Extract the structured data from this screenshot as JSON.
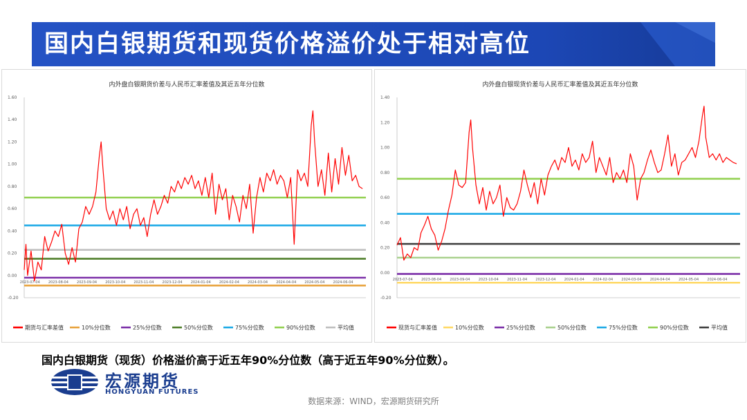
{
  "slide": {
    "title": "国内白银期货和现货价格溢价处于相对高位",
    "caption": "国内白银期货（现货）价格溢价高于近五年90%分位数（高于近五年90%分位数）。",
    "source": "数据来源：WIND，宏源期货研究所",
    "logo": {
      "cn": "宏源期货",
      "en": "HONGYUAN FUTURES"
    },
    "colors": {
      "banner": "#1c47b5",
      "brand": "#1a3d8f",
      "series": "#ff0000"
    }
  },
  "chart_data": [
    {
      "type": "line",
      "title": "内外盘白银期货价差与人民币汇率差值及其近五年分位数",
      "ylim": [
        -0.2,
        1.6
      ],
      "yticks": [
        "-0.20",
        "0.00",
        "0.20",
        "0.40",
        "0.60",
        "0.80",
        "1.00",
        "1.20",
        "1.40",
        "1.60"
      ],
      "xticks": [
        "2023-07-04",
        "2023-08-04",
        "2023-09-04",
        "2023-10-04",
        "2023-11-04",
        "2023-12-04",
        "2024-01-04",
        "2024-02-04",
        "2024-03-04",
        "2024-04-04",
        "2024-05-04",
        "2024-06-04"
      ],
      "series": [
        {
          "name": "期货与汇率差值",
          "color": "#ff0000",
          "points": [
            [
              0,
              0.05
            ],
            [
              0.005,
              0.28
            ],
            [
              0.01,
              0.0
            ],
            [
              0.02,
              0.22
            ],
            [
              0.03,
              -0.05
            ],
            [
              0.04,
              0.12
            ],
            [
              0.05,
              0.05
            ],
            [
              0.06,
              0.35
            ],
            [
              0.07,
              0.22
            ],
            [
              0.08,
              0.3
            ],
            [
              0.09,
              0.4
            ],
            [
              0.1,
              0.35
            ],
            [
              0.11,
              0.46
            ],
            [
              0.12,
              0.2
            ],
            [
              0.13,
              0.1
            ],
            [
              0.14,
              0.25
            ],
            [
              0.15,
              0.12
            ],
            [
              0.16,
              0.42
            ],
            [
              0.17,
              0.48
            ],
            [
              0.18,
              0.62
            ],
            [
              0.19,
              0.55
            ],
            [
              0.2,
              0.62
            ],
            [
              0.21,
              0.75
            ],
            [
              0.22,
              1.08
            ],
            [
              0.225,
              1.2
            ],
            [
              0.23,
              0.98
            ],
            [
              0.24,
              0.6
            ],
            [
              0.25,
              0.5
            ],
            [
              0.26,
              0.58
            ],
            [
              0.27,
              0.45
            ],
            [
              0.28,
              0.6
            ],
            [
              0.29,
              0.5
            ],
            [
              0.3,
              0.62
            ],
            [
              0.31,
              0.42
            ],
            [
              0.32,
              0.55
            ],
            [
              0.33,
              0.6
            ],
            [
              0.34,
              0.45
            ],
            [
              0.35,
              0.52
            ],
            [
              0.36,
              0.35
            ],
            [
              0.37,
              0.55
            ],
            [
              0.38,
              0.68
            ],
            [
              0.39,
              0.55
            ],
            [
              0.4,
              0.62
            ],
            [
              0.41,
              0.72
            ],
            [
              0.42,
              0.65
            ],
            [
              0.43,
              0.8
            ],
            [
              0.44,
              0.75
            ],
            [
              0.45,
              0.85
            ],
            [
              0.46,
              0.78
            ],
            [
              0.47,
              0.88
            ],
            [
              0.48,
              0.82
            ],
            [
              0.49,
              0.9
            ],
            [
              0.5,
              0.78
            ],
            [
              0.51,
              0.85
            ],
            [
              0.52,
              0.72
            ],
            [
              0.53,
              0.88
            ],
            [
              0.54,
              0.7
            ],
            [
              0.55,
              0.92
            ],
            [
              0.56,
              0.55
            ],
            [
              0.57,
              0.82
            ],
            [
              0.58,
              0.68
            ],
            [
              0.59,
              0.78
            ],
            [
              0.6,
              0.5
            ],
            [
              0.61,
              0.72
            ],
            [
              0.62,
              0.62
            ],
            [
              0.63,
              0.48
            ],
            [
              0.64,
              0.72
            ],
            [
              0.65,
              0.6
            ],
            [
              0.66,
              0.82
            ],
            [
              0.67,
              0.38
            ],
            [
              0.68,
              0.7
            ],
            [
              0.69,
              0.88
            ],
            [
              0.7,
              0.75
            ],
            [
              0.71,
              0.92
            ],
            [
              0.72,
              0.85
            ],
            [
              0.73,
              0.95
            ],
            [
              0.74,
              0.82
            ],
            [
              0.75,
              0.9
            ],
            [
              0.76,
              0.85
            ],
            [
              0.77,
              0.7
            ],
            [
              0.78,
              0.88
            ],
            [
              0.79,
              0.28
            ],
            [
              0.8,
              0.95
            ],
            [
              0.81,
              0.85
            ],
            [
              0.82,
              0.92
            ],
            [
              0.83,
              0.8
            ],
            [
              0.84,
              1.35
            ],
            [
              0.845,
              1.48
            ],
            [
              0.85,
              1.2
            ],
            [
              0.86,
              0.8
            ],
            [
              0.87,
              0.95
            ],
            [
              0.88,
              0.72
            ],
            [
              0.89,
              1.1
            ],
            [
              0.9,
              0.75
            ],
            [
              0.91,
              1.05
            ],
            [
              0.92,
              0.82
            ],
            [
              0.93,
              1.15
            ],
            [
              0.94,
              0.9
            ],
            [
              0.95,
              1.08
            ],
            [
              0.96,
              0.85
            ],
            [
              0.97,
              0.9
            ],
            [
              0.98,
              0.8
            ],
            [
              0.99,
              0.78
            ]
          ]
        }
      ],
      "reference_lines": [
        {
          "name": "10%分位数",
          "value": -0.09,
          "color": "#e8a33d"
        },
        {
          "name": "25%分位数",
          "value": -0.02,
          "color": "#7b2fa8"
        },
        {
          "name": "50%分位数",
          "value": 0.15,
          "color": "#4f7f2a"
        },
        {
          "name": "75%分位数",
          "value": 0.45,
          "color": "#1eaae6"
        },
        {
          "name": "90%分位数",
          "value": 0.7,
          "color": "#92d050"
        },
        {
          "name": "平均值",
          "value": 0.23,
          "color": "#bfbfbf"
        }
      ],
      "legend": "bottom"
    },
    {
      "type": "line",
      "title": "内外盘白银现货价差与人民币汇率差值及其近五年分位数",
      "ylim": [
        -0.2,
        1.4
      ],
      "yticks": [
        "-0.20",
        "0.00",
        "0.20",
        "0.40",
        "0.60",
        "0.80",
        "1.00",
        "1.20",
        "1.40"
      ],
      "xticks": [
        "2023-07-04",
        "2023-08-04",
        "2023-09-04",
        "2023-10-04",
        "2023-11-04",
        "2023-12-04",
        "2024-01-04",
        "2024-02-04",
        "2024-03-04",
        "2024-04-04",
        "2024-05-04",
        "2024-06-04"
      ],
      "series": [
        {
          "name": "现货与汇率差值",
          "color": "#ff0000",
          "points": [
            [
              0,
              0.22
            ],
            [
              0.01,
              0.28
            ],
            [
              0.02,
              0.1
            ],
            [
              0.03,
              0.15
            ],
            [
              0.04,
              0.12
            ],
            [
              0.05,
              0.2
            ],
            [
              0.06,
              0.18
            ],
            [
              0.07,
              0.32
            ],
            [
              0.08,
              0.38
            ],
            [
              0.09,
              0.45
            ],
            [
              0.1,
              0.35
            ],
            [
              0.11,
              0.3
            ],
            [
              0.12,
              0.18
            ],
            [
              0.13,
              0.25
            ],
            [
              0.14,
              0.35
            ],
            [
              0.15,
              0.5
            ],
            [
              0.16,
              0.62
            ],
            [
              0.17,
              0.82
            ],
            [
              0.18,
              0.7
            ],
            [
              0.19,
              0.68
            ],
            [
              0.2,
              0.72
            ],
            [
              0.21,
              1.12
            ],
            [
              0.215,
              1.22
            ],
            [
              0.22,
              1.0
            ],
            [
              0.23,
              0.7
            ],
            [
              0.24,
              0.55
            ],
            [
              0.25,
              0.68
            ],
            [
              0.26,
              0.5
            ],
            [
              0.27,
              0.65
            ],
            [
              0.28,
              0.55
            ],
            [
              0.29,
              0.6
            ],
            [
              0.3,
              0.7
            ],
            [
              0.31,
              0.45
            ],
            [
              0.32,
              0.6
            ],
            [
              0.33,
              0.52
            ],
            [
              0.34,
              0.5
            ],
            [
              0.35,
              0.55
            ],
            [
              0.36,
              0.65
            ],
            [
              0.37,
              0.82
            ],
            [
              0.38,
              0.7
            ],
            [
              0.39,
              0.6
            ],
            [
              0.4,
              0.72
            ],
            [
              0.41,
              0.55
            ],
            [
              0.42,
              0.75
            ],
            [
              0.43,
              0.62
            ],
            [
              0.44,
              0.78
            ],
            [
              0.45,
              0.85
            ],
            [
              0.46,
              0.9
            ],
            [
              0.47,
              0.82
            ],
            [
              0.48,
              0.92
            ],
            [
              0.49,
              0.88
            ],
            [
              0.5,
              1.0
            ],
            [
              0.51,
              0.85
            ],
            [
              0.52,
              0.9
            ],
            [
              0.53,
              0.82
            ],
            [
              0.54,
              0.95
            ],
            [
              0.55,
              0.88
            ],
            [
              0.56,
              0.92
            ],
            [
              0.57,
              1.05
            ],
            [
              0.58,
              0.8
            ],
            [
              0.59,
              0.92
            ],
            [
              0.6,
              0.85
            ],
            [
              0.61,
              0.78
            ],
            [
              0.62,
              0.92
            ],
            [
              0.63,
              0.72
            ],
            [
              0.64,
              0.8
            ],
            [
              0.65,
              0.75
            ],
            [
              0.66,
              0.82
            ],
            [
              0.67,
              0.72
            ],
            [
              0.68,
              0.95
            ],
            [
              0.69,
              0.85
            ],
            [
              0.7,
              0.58
            ],
            [
              0.71,
              0.75
            ],
            [
              0.72,
              0.8
            ],
            [
              0.73,
              0.9
            ],
            [
              0.74,
              0.98
            ],
            [
              0.75,
              0.88
            ],
            [
              0.76,
              0.8
            ],
            [
              0.77,
              0.82
            ],
            [
              0.78,
              0.95
            ],
            [
              0.79,
              1.1
            ],
            [
              0.8,
              0.85
            ],
            [
              0.81,
              0.95
            ],
            [
              0.82,
              0.78
            ],
            [
              0.83,
              0.88
            ],
            [
              0.84,
              0.9
            ],
            [
              0.85,
              0.95
            ],
            [
              0.86,
              1.0
            ],
            [
              0.87,
              0.92
            ],
            [
              0.88,
              1.05
            ],
            [
              0.89,
              1.25
            ],
            [
              0.895,
              1.33
            ],
            [
              0.9,
              1.08
            ],
            [
              0.91,
              0.92
            ],
            [
              0.92,
              0.95
            ],
            [
              0.93,
              0.9
            ],
            [
              0.94,
              0.95
            ],
            [
              0.95,
              0.88
            ],
            [
              0.96,
              0.92
            ],
            [
              0.97,
              0.9
            ],
            [
              0.98,
              0.88
            ],
            [
              0.99,
              0.87
            ]
          ]
        }
      ],
      "reference_lines": [
        {
          "name": "10%分位数",
          "value": -0.08,
          "color": "#ffd966"
        },
        {
          "name": "25%分位数",
          "value": -0.01,
          "color": "#7b2fa8"
        },
        {
          "name": "50%分位数",
          "value": 0.12,
          "color": "#a9d18e"
        },
        {
          "name": "75%分位数",
          "value": 0.47,
          "color": "#1eaae6"
        },
        {
          "name": "90%分位数",
          "value": 0.75,
          "color": "#92d050"
        },
        {
          "name": "平均值",
          "value": 0.23,
          "color": "#404040"
        }
      ],
      "legend": "bottom"
    }
  ]
}
